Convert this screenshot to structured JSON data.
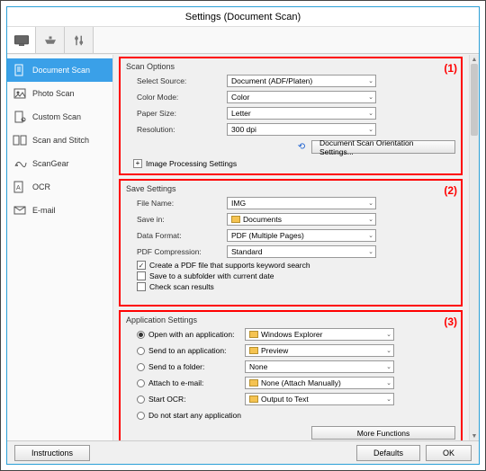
{
  "window": {
    "title": "Settings (Document Scan)"
  },
  "tabs": [
    {
      "name": "display-tab",
      "active": true
    },
    {
      "name": "scanner-tab",
      "active": false
    },
    {
      "name": "tools-tab",
      "active": false
    }
  ],
  "sidebar": [
    {
      "key": "document",
      "label": "Document Scan",
      "active": true
    },
    {
      "key": "photo",
      "label": "Photo Scan",
      "active": false
    },
    {
      "key": "custom",
      "label": "Custom Scan",
      "active": false
    },
    {
      "key": "stitch",
      "label": "Scan and Stitch",
      "active": false
    },
    {
      "key": "scangear",
      "label": "ScanGear",
      "active": false
    },
    {
      "key": "ocr",
      "label": "OCR",
      "active": false
    },
    {
      "key": "email",
      "label": "E-mail",
      "active": false
    }
  ],
  "panels": {
    "scan": {
      "marker": "(1)",
      "title": "Scan Options",
      "rows": {
        "source": {
          "label": "Select Source:",
          "value": "Document (ADF/Platen)"
        },
        "color": {
          "label": "Color Mode:",
          "value": "Color"
        },
        "paper": {
          "label": "Paper Size:",
          "value": "Letter"
        },
        "res": {
          "label": "Resolution:",
          "value": "300 dpi"
        }
      },
      "orient_btn": "Document Scan Orientation Settings...",
      "expander": "Image Processing Settings"
    },
    "save": {
      "marker": "(2)",
      "title": "Save Settings",
      "rows": {
        "fname": {
          "label": "File Name:",
          "value": "IMG"
        },
        "savein": {
          "label": "Save in:",
          "value": "Documents",
          "folder": true
        },
        "fmt": {
          "label": "Data Format:",
          "value": "PDF (Multiple Pages)"
        },
        "comp": {
          "label": "PDF Compression:",
          "value": "Standard"
        }
      },
      "checks": [
        {
          "key": "kw",
          "label": "Create a PDF file that supports keyword search",
          "checked": true
        },
        {
          "key": "sub",
          "label": "Save to a subfolder with current date",
          "checked": false
        },
        {
          "key": "chk",
          "label": "Check scan results",
          "checked": false
        }
      ]
    },
    "app": {
      "marker": "(3)",
      "title": "Application Settings",
      "options": [
        {
          "key": "open",
          "label": "Open with an application:",
          "value": "Windows Explorer",
          "folder": true,
          "selected": true
        },
        {
          "key": "send",
          "label": "Send to an application:",
          "value": "Preview",
          "folder": true,
          "selected": false
        },
        {
          "key": "folder",
          "label": "Send to a folder:",
          "value": "None",
          "folder": false,
          "selected": false
        },
        {
          "key": "email",
          "label": "Attach to e-mail:",
          "value": "None (Attach Manually)",
          "folder": true,
          "selected": false
        },
        {
          "key": "ocr",
          "label": "Start OCR:",
          "value": "Output to Text",
          "folder": true,
          "selected": false
        },
        {
          "key": "none",
          "label": "Do not start any application",
          "value": null,
          "selected": false
        }
      ],
      "more_btn": "More Functions"
    }
  },
  "footer": {
    "instructions": "Instructions",
    "defaults": "Defaults",
    "ok": "OK"
  },
  "colors": {
    "accent": "#3aa0e8",
    "highlight": "#f00",
    "win_border": "#2a9fd6"
  }
}
